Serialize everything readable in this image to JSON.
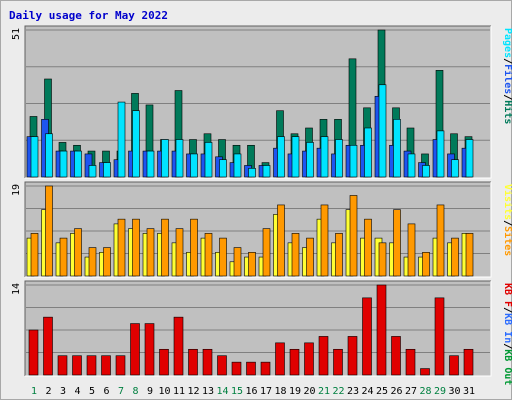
{
  "colors": {
    "page_bg": "#ececec",
    "panel_bg": "#c0c0c0",
    "grid": "#808080",
    "title": "#0000cc",
    "pages": "#00e4ff",
    "files": "#1d55f0",
    "hits": "#007a5a",
    "visits": "#ffff33",
    "sites": "#ff9900",
    "kb_in": "#2b6cff",
    "kb_out": "#009933",
    "kb_f": "#e00000",
    "day_normal": "#0000ff",
    "day_weekend": "#008040",
    "legend_sep": "#000000"
  },
  "chart_data": {
    "type": "bar",
    "title": "Daily usage for May 2022",
    "categories": [
      "1",
      "2",
      "3",
      "4",
      "5",
      "6",
      "7",
      "8",
      "9",
      "10",
      "11",
      "12",
      "13",
      "14",
      "15",
      "16",
      "17",
      "18",
      "19",
      "20",
      "21",
      "22",
      "23",
      "24",
      "25",
      "26",
      "27",
      "28",
      "29",
      "30",
      "31"
    ],
    "weekend_days": [
      "1",
      "7",
      "8",
      "14",
      "15",
      "21",
      "22",
      "28",
      "29"
    ],
    "panels": [
      {
        "name": "hits-files-pages",
        "max_label": "51",
        "ylim": [
          0,
          51
        ],
        "legend": [
          "Pages",
          "/",
          "Files",
          "/",
          "Hits"
        ],
        "legend_colors": [
          "pages",
          "legend_sep",
          "files",
          "legend_sep",
          "hits"
        ],
        "series": [
          {
            "name": "Hits",
            "color": "hits",
            "values": [
              21,
              34,
              12,
              11,
              9,
              9,
              9,
              29,
              25,
              13,
              30,
              13,
              15,
              13,
              11,
              11,
              5,
              23,
              15,
              17,
              20,
              20,
              41,
              24,
              51,
              24,
              17,
              8,
              37,
              15,
              14
            ]
          },
          {
            "name": "Files",
            "color": "files",
            "values": [
              14,
              20,
              9,
              9,
              8,
              5,
              6,
              9,
              9,
              9,
              9,
              8,
              8,
              7,
              5,
              4,
              4,
              10,
              8,
              9,
              10,
              8,
              11,
              11,
              28,
              11,
              9,
              5,
              13,
              8,
              10
            ]
          },
          {
            "name": "Pages",
            "color": "pages",
            "values": [
              14,
              15,
              9,
              9,
              4,
              5,
              26,
              23,
              9,
              13,
              13,
              8,
              12,
              6,
              8,
              3,
              4,
              14,
              14,
              12,
              14,
              13,
              11,
              17,
              32,
              20,
              8,
              4,
              16,
              6,
              13
            ]
          }
        ]
      },
      {
        "name": "sites-visits",
        "max_label": "19",
        "ylim": [
          0,
          19
        ],
        "legend": [
          "Visits",
          "/",
          "Sites"
        ],
        "legend_colors": [
          "visits",
          "legend_sep",
          "sites"
        ],
        "series": [
          {
            "name": "Visits",
            "color": "visits",
            "values": [
              8,
              14,
              7,
              9,
              4,
              5,
              11,
              10,
              9,
              9,
              7,
              5,
              8,
              5,
              3,
              4,
              4,
              13,
              7,
              6,
              12,
              7,
              14,
              8,
              8,
              7,
              4,
              4,
              8,
              7,
              9
            ]
          },
          {
            "name": "Sites",
            "color": "sites",
            "values": [
              9,
              19,
              8,
              10,
              6,
              6,
              12,
              12,
              10,
              12,
              10,
              12,
              9,
              8,
              6,
              5,
              10,
              15,
              9,
              8,
              15,
              9,
              17,
              12,
              7,
              14,
              11,
              5,
              15,
              8,
              9
            ]
          }
        ]
      },
      {
        "name": "kbytes",
        "max_label": "14",
        "ylim": [
          0,
          14
        ],
        "legend": [
          "KB F",
          "/",
          "KB In",
          "/",
          "KB Out"
        ],
        "legend_colors": [
          "kb_f",
          "legend_sep",
          "kb_in",
          "legend_sep",
          "kb_out"
        ],
        "series": [
          {
            "name": "KB F",
            "color": "kb_f",
            "values": [
              7,
              9,
              3,
              3,
              3,
              3,
              3,
              8,
              8,
              4,
              9,
              4,
              4,
              3,
              2,
              2,
              2,
              5,
              4,
              5,
              6,
              4,
              6,
              12,
              14,
              6,
              4,
              1,
              12,
              3,
              4
            ]
          }
        ]
      }
    ]
  }
}
